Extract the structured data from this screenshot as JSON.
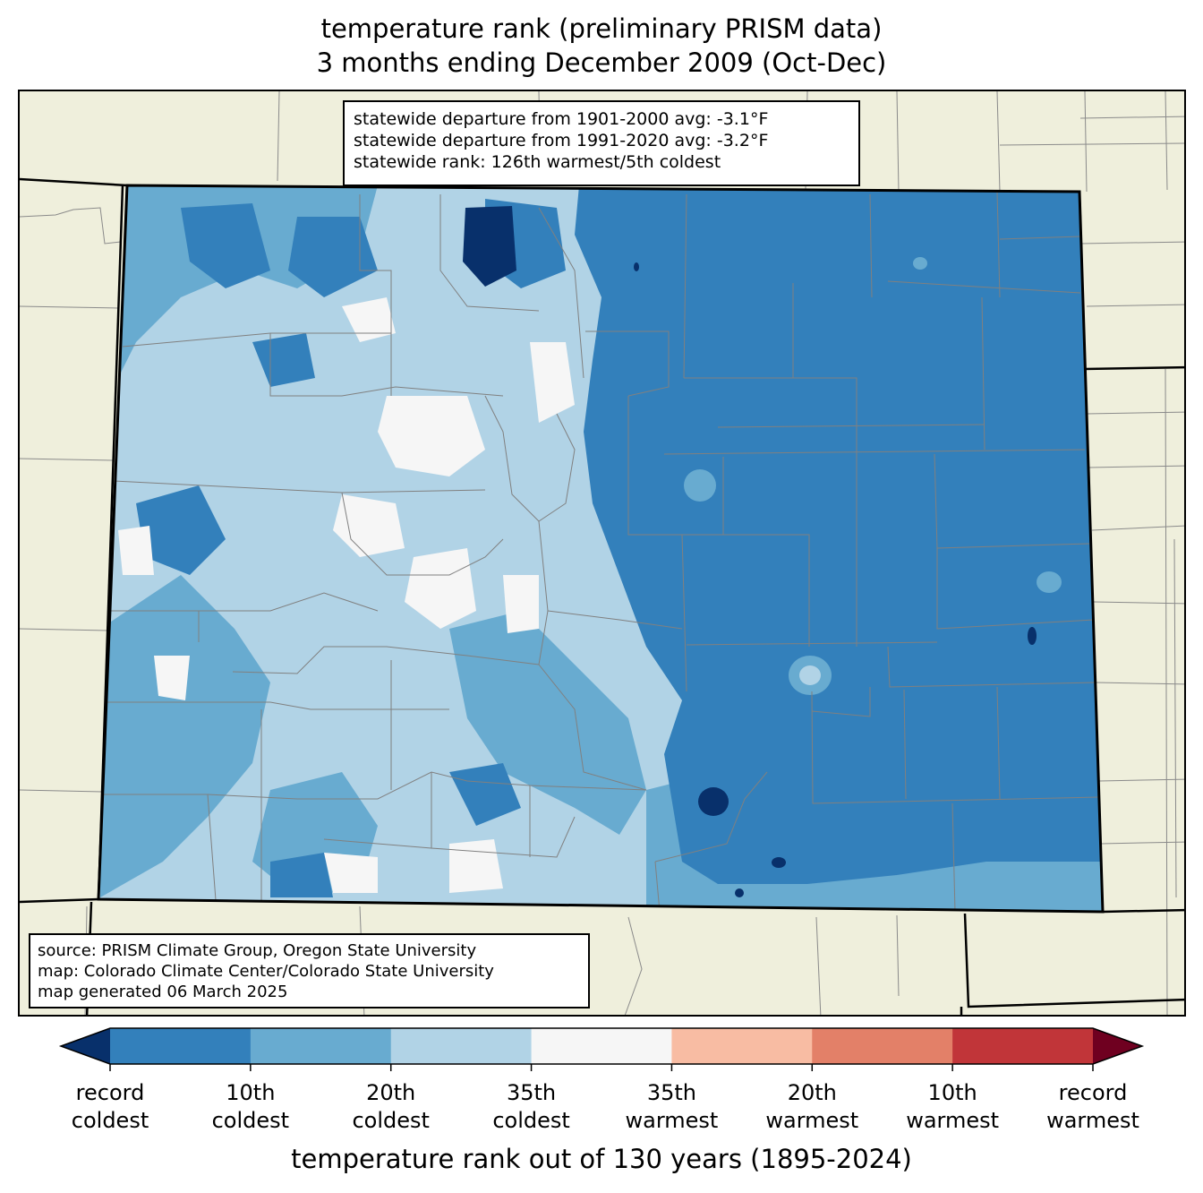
{
  "title": {
    "line1": "temperature rank (preliminary PRISM data)",
    "line2": "3 months ending December 2009 (Oct-Dec)"
  },
  "stats": {
    "line1": "statewide departure from 1901-2000 avg: -3.1°F",
    "line2": "statewide departure from 1991-2020 avg: -3.2°F",
    "line3": "statewide rank: 126th warmest/5th coldest"
  },
  "source": {
    "line1": "source: PRISM Climate Group, Oregon State University",
    "line2": "map: Colorado Climate Center/Colorado State University",
    "line3": "map generated 06 March 2025"
  },
  "colorbar": {
    "xlabel": "temperature rank out of 130 years (1895-2024)",
    "ticks": [
      {
        "line1": "record",
        "line2": "coldest"
      },
      {
        "line1": "10th",
        "line2": "coldest"
      },
      {
        "line1": "20th",
        "line2": "coldest"
      },
      {
        "line1": "35th",
        "line2": "coldest"
      },
      {
        "line1": "35th",
        "line2": "warmest"
      },
      {
        "line1": "20th",
        "line2": "warmest"
      },
      {
        "line1": "10th",
        "line2": "warmest"
      },
      {
        "line1": "record",
        "line2": "warmest"
      }
    ],
    "colors": {
      "under": "#08306b",
      "bins": [
        "#3380bb",
        "#68abd0",
        "#b1d3e6",
        "#f6f6f6",
        "#f8bca3",
        "#e38068",
        "#c13539"
      ],
      "over": "#6f0020"
    }
  },
  "map_colors": {
    "land": "#efefdc",
    "record_coldest": "#08306b",
    "coldest_10": "#3380bb",
    "coldest_20": "#68abd0",
    "coldest_35": "#b1d3e6",
    "near_normal": "#f6f6f6"
  }
}
